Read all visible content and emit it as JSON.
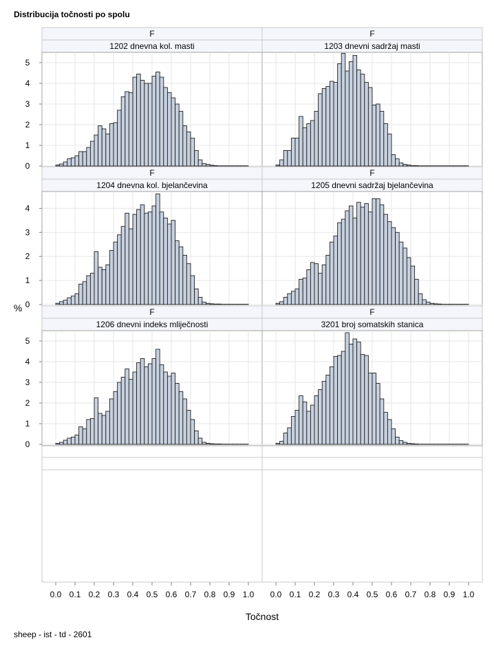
{
  "title": "Distribucija točnosti po spolu",
  "footnote": "sheep - ist - td - 2601",
  "chart_data": {
    "type": "bar",
    "subtype": "histogram-panel-grid",
    "xlabel": "Točnost",
    "ylabel": "%",
    "xlim": [
      -0.05,
      1.05
    ],
    "x_ticks": [
      "0.0",
      "0.1",
      "0.2",
      "0.3",
      "0.4",
      "0.5",
      "0.6",
      "0.7",
      "0.8",
      "0.9",
      "1.0"
    ],
    "bin_width": 0.02,
    "bin_start": 0.01,
    "bar_color": "#c7d1df",
    "grid": true,
    "rows": [
      {
        "ylim": [
          0,
          5.5
        ],
        "y_ticks": [
          "0",
          "1",
          "2",
          "3",
          "4",
          "5"
        ]
      },
      {
        "ylim": [
          0,
          4.7
        ],
        "y_ticks": [
          "0",
          "1",
          "2",
          "3",
          "4"
        ]
      },
      {
        "ylim": [
          0,
          5.5
        ],
        "y_ticks": [
          "0",
          "1",
          "2",
          "3",
          "4",
          "5"
        ]
      }
    ],
    "panels": [
      {
        "sex": "F",
        "trait": "1202 dnevna kol. masti",
        "values": [
          0.05,
          0.1,
          0.2,
          0.35,
          0.4,
          0.5,
          0.7,
          0.7,
          0.9,
          1.2,
          1.5,
          1.95,
          1.8,
          1.55,
          2.05,
          2.1,
          2.7,
          3.35,
          3.6,
          3.55,
          4.3,
          4.45,
          4.15,
          4.0,
          4.0,
          4.35,
          4.55,
          4.3,
          3.8,
          3.55,
          3.3,
          3.0,
          2.65,
          1.95,
          1.65,
          1.35,
          0.75,
          0.3,
          0.12,
          0.08,
          0.04,
          0.02,
          0.01,
          0.01,
          0.01,
          0.01,
          0.01,
          0.01,
          0.01,
          0.01
        ]
      },
      {
        "sex": "F",
        "trait": "1203 dnevni sadržaj masti",
        "values": [
          0.05,
          0.3,
          0.75,
          0.75,
          1.35,
          1.35,
          2.4,
          1.85,
          2.05,
          2.2,
          2.65,
          3.5,
          3.75,
          3.85,
          4.1,
          4.05,
          4.95,
          5.45,
          4.6,
          5.05,
          5.35,
          4.65,
          4.45,
          4.05,
          3.8,
          2.95,
          3.0,
          2.65,
          2.05,
          1.55,
          0.55,
          0.35,
          0.15,
          0.08,
          0.05,
          0.02,
          0.02,
          0.01,
          0.01,
          0.01,
          0.01,
          0.01,
          0.01,
          0.01,
          0.01,
          0.01,
          0.01,
          0.01,
          0.01,
          0.01
        ]
      },
      {
        "sex": "F",
        "trait": "1204 dnevna kol. bjelančevina",
        "values": [
          0.05,
          0.12,
          0.18,
          0.28,
          0.35,
          0.45,
          0.85,
          0.95,
          1.2,
          1.3,
          2.2,
          1.55,
          1.45,
          1.65,
          2.25,
          2.6,
          2.9,
          3.25,
          3.8,
          3.15,
          3.75,
          3.95,
          4.15,
          3.8,
          3.85,
          4.1,
          4.6,
          3.85,
          3.6,
          3.35,
          3.5,
          2.65,
          2.4,
          2.05,
          1.7,
          1.2,
          0.65,
          0.3,
          0.1,
          0.05,
          0.03,
          0.02,
          0.02,
          0.01,
          0.01,
          0.01,
          0.01,
          0.01,
          0.01,
          0.01
        ]
      },
      {
        "sex": "F",
        "trait": "1205 dnevni sadržaj bjelančevina",
        "values": [
          0.05,
          0.12,
          0.3,
          0.45,
          0.55,
          0.65,
          1.05,
          1.1,
          1.45,
          1.75,
          1.7,
          1.3,
          1.65,
          2.05,
          2.6,
          2.85,
          3.4,
          3.55,
          3.9,
          4.1,
          3.6,
          4.25,
          4.05,
          4.2,
          3.85,
          4.4,
          4.4,
          4.15,
          3.75,
          3.45,
          3.2,
          3.0,
          2.6,
          2.35,
          1.95,
          1.6,
          1.05,
          0.45,
          0.2,
          0.1,
          0.05,
          0.03,
          0.02,
          0.01,
          0.01,
          0.01,
          0.01,
          0.01,
          0.01,
          0.01
        ]
      },
      {
        "sex": "F",
        "trait": "1206 dnevni indeks mliječnosti",
        "values": [
          0.05,
          0.1,
          0.2,
          0.3,
          0.35,
          0.45,
          0.85,
          0.75,
          1.2,
          1.25,
          2.25,
          1.5,
          1.4,
          1.6,
          2.2,
          2.55,
          3.0,
          3.25,
          3.65,
          3.15,
          3.5,
          3.95,
          4.15,
          3.75,
          3.9,
          4.15,
          4.6,
          3.85,
          3.5,
          3.3,
          3.45,
          2.95,
          2.55,
          2.2,
          1.65,
          1.2,
          0.65,
          0.3,
          0.1,
          0.05,
          0.03,
          0.02,
          0.02,
          0.01,
          0.01,
          0.01,
          0.01,
          0.01,
          0.01,
          0.01
        ]
      },
      {
        "sex": "F",
        "trait": "3201 broj somatskih stanica",
        "values": [
          0.05,
          0.15,
          0.55,
          0.8,
          1.35,
          1.65,
          2.35,
          2.05,
          1.6,
          1.9,
          2.35,
          2.65,
          3.05,
          3.35,
          3.75,
          4.25,
          4.3,
          4.5,
          5.4,
          4.85,
          5.1,
          4.95,
          4.35,
          4.3,
          3.45,
          3.45,
          2.95,
          2.2,
          1.55,
          1.2,
          0.75,
          0.35,
          0.18,
          0.1,
          0.05,
          0.03,
          0.02,
          0.01,
          0.01,
          0.01,
          0.01,
          0.01,
          0.01,
          0.01,
          0.01,
          0.01,
          0.01,
          0.01,
          0.01,
          0.01
        ]
      }
    ]
  }
}
